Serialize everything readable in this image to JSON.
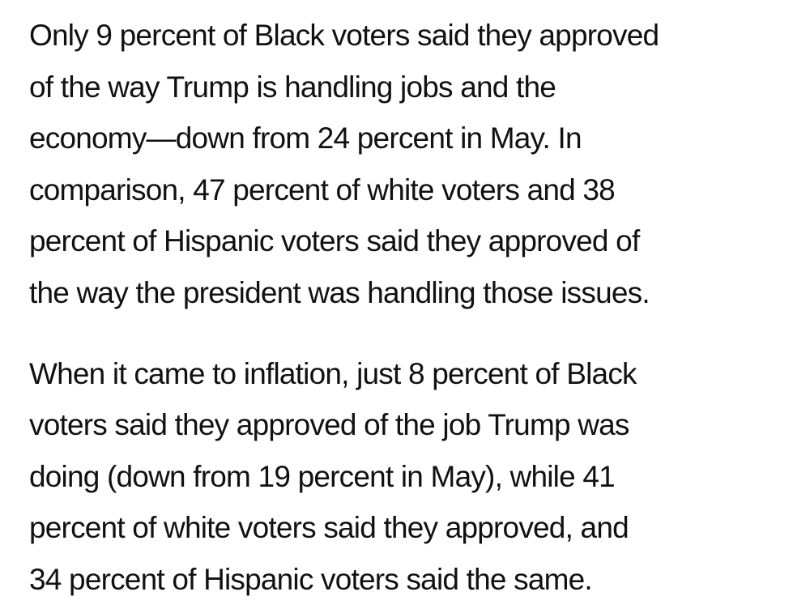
{
  "article": {
    "paragraphs": [
      {
        "lines": [
          "Only 9 percent of Black voters said they approved",
          "of the way Trump is handling jobs and the",
          "economy—down from 24 percent in May. In",
          "comparison, 47 percent of white voters and 38",
          "percent of Hispanic voters said they approved of",
          "the way the president was handling those issues."
        ]
      },
      {
        "lines": [
          "When it came to inflation, just 8 percent of Black",
          "voters said they approved of the job Trump was",
          "doing (down from 19 percent in May), while 41",
          "percent of white voters said they approved, and",
          "34 percent of Hispanic voters said the same."
        ]
      }
    ]
  }
}
